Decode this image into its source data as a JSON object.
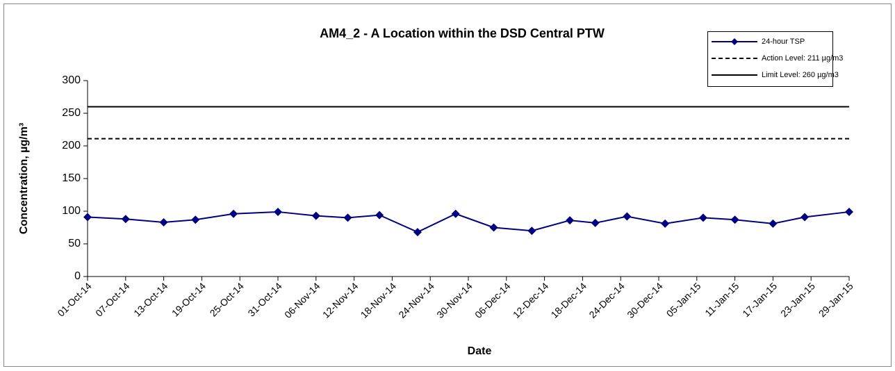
{
  "chart_data": {
    "type": "line",
    "title": "AM4_2 - A Location within the DSD Central PTW",
    "x_label": "Date",
    "y_label": "Concentration, µg/m³",
    "xlim": [
      "2014-10-01",
      "2015-01-29"
    ],
    "xticks": [
      {
        "value": "2014-10-01",
        "label": "01-Oct-14"
      },
      {
        "value": "2014-10-07",
        "label": "07-Oct-14"
      },
      {
        "value": "2014-10-13",
        "label": "13-Oct-14"
      },
      {
        "value": "2014-10-19",
        "label": "19-Oct-14"
      },
      {
        "value": "2014-10-25",
        "label": "25-Oct-14"
      },
      {
        "value": "2014-10-31",
        "label": "31-Oct-14"
      },
      {
        "value": "2014-11-06",
        "label": "06-Nov-14"
      },
      {
        "value": "2014-11-12",
        "label": "12-Nov-14"
      },
      {
        "value": "2014-11-18",
        "label": "18-Nov-14"
      },
      {
        "value": "2014-11-24",
        "label": "24-Nov-14"
      },
      {
        "value": "2014-11-30",
        "label": "30-Nov-14"
      },
      {
        "value": "2014-12-06",
        "label": "06-Dec-14"
      },
      {
        "value": "2014-12-12",
        "label": "12-Dec-14"
      },
      {
        "value": "2014-12-18",
        "label": "18-Dec-14"
      },
      {
        "value": "2014-12-24",
        "label": "24-Dec-14"
      },
      {
        "value": "2014-12-30",
        "label": "30-Dec-14"
      },
      {
        "value": "2015-01-05",
        "label": "05-Jan-15"
      },
      {
        "value": "2015-01-11",
        "label": "11-Jan-15"
      },
      {
        "value": "2015-01-17",
        "label": "17-Jan-15"
      },
      {
        "value": "2015-01-23",
        "label": "23-Jan-15"
      },
      {
        "value": "2015-01-29",
        "label": "29-Jan-15"
      }
    ],
    "ylim": [
      0,
      300
    ],
    "yticks": [
      0,
      50,
      100,
      150,
      200,
      250,
      300
    ],
    "grid": false,
    "legend": "top-right",
    "series": [
      {
        "name": "24-hour TSP",
        "color": "#000080",
        "style": "solid",
        "marker": "diamond",
        "x": [
          "2014-10-01",
          "2014-10-07",
          "2014-10-13",
          "2014-10-18",
          "2014-10-24",
          "2014-10-31",
          "2014-11-06",
          "2014-11-11",
          "2014-11-16",
          "2014-11-22",
          "2014-11-28",
          "2014-12-04",
          "2014-12-10",
          "2014-12-16",
          "2014-12-20",
          "2014-12-25",
          "2014-12-31",
          "2015-01-06",
          "2015-01-11",
          "2015-01-17",
          "2015-01-22",
          "2015-01-29"
        ],
        "values": [
          91,
          88,
          83,
          87,
          96,
          99,
          93,
          90,
          94,
          68,
          96,
          75,
          70,
          86,
          82,
          92,
          81,
          90,
          87,
          81,
          91,
          99
        ]
      },
      {
        "name": "Action Level: 211 µg/m3",
        "color": "#000000",
        "style": "dashed",
        "x": [
          "2014-10-01",
          "2015-01-29"
        ],
        "values": [
          211,
          211
        ]
      },
      {
        "name": "Limit Level: 260 µg/m3",
        "color": "#000000",
        "style": "solid",
        "x": [
          "2014-10-01",
          "2015-01-29"
        ],
        "values": [
          260,
          260
        ]
      }
    ]
  }
}
